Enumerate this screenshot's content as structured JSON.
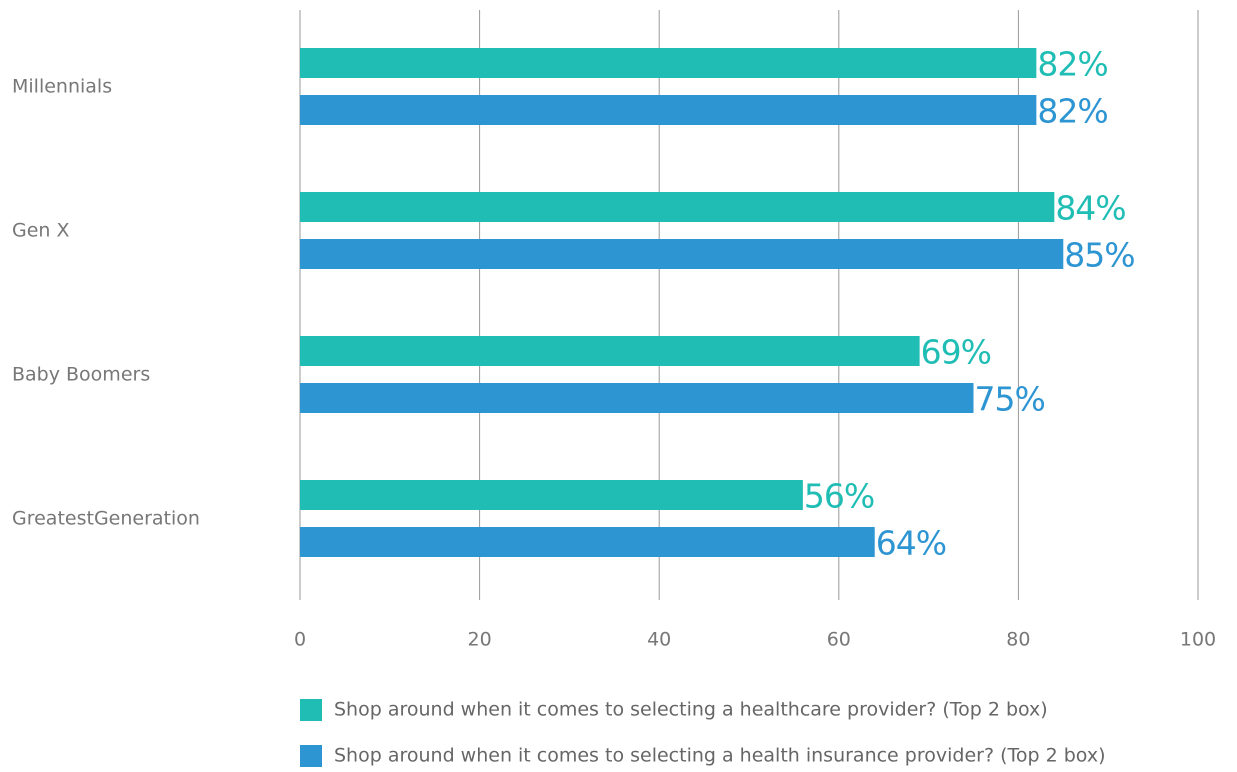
{
  "chart_data": {
    "type": "bar",
    "orientation": "horizontal",
    "categories": [
      "Millennials",
      "Gen X",
      "Baby Boomers",
      "GreatestGeneration"
    ],
    "series": [
      {
        "name": "Shop around when it comes to selecting a healthcare provider? (Top 2 box)",
        "color": "#20bdb5",
        "values": [
          82,
          84,
          69,
          56
        ],
        "value_labels": [
          "82%",
          "84%",
          "69%",
          "56%"
        ]
      },
      {
        "name": "Shop around when it comes to selecting a health insurance provider? (Top 2 box)",
        "color": "#2e95d3",
        "values": [
          82,
          85,
          75,
          64
        ],
        "value_labels": [
          "82%",
          "85%",
          "75%",
          "64%"
        ]
      }
    ],
    "xlim": [
      0,
      100
    ],
    "xticks": [
      0,
      20,
      40,
      60,
      80,
      100
    ],
    "grid": true,
    "legend": "bottom"
  }
}
